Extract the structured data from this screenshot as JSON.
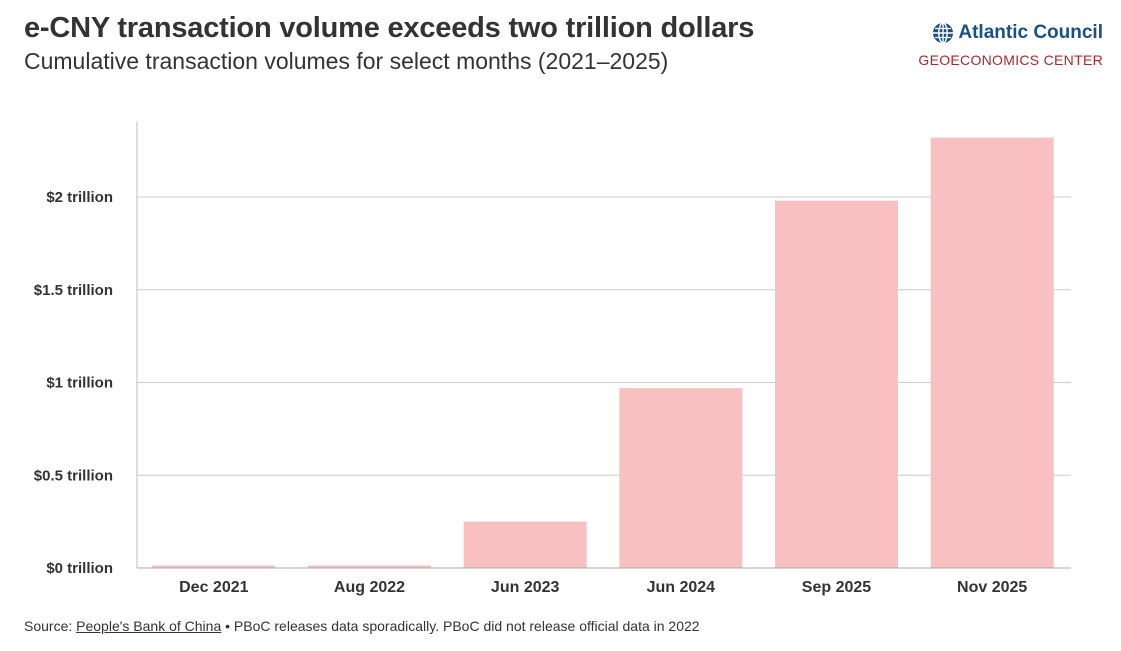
{
  "header": {
    "title": "e-CNY transaction volume exceeds two trillion dollars",
    "subtitle": "Cumulative transaction volumes for select months (2021–2025)"
  },
  "logo": {
    "name": "Atlantic Council",
    "center": "GEOECONOMICS CENTER",
    "icon": "globe-icon",
    "brand_color": "#1b4f8a",
    "center_color": "#b1262e"
  },
  "chart_data": {
    "type": "bar",
    "title": "e-CNY transaction volume exceeds two trillion dollars",
    "subtitle": "Cumulative transaction volumes for select months (2021–2025)",
    "categories": [
      "Dec 2021",
      "Aug 2022",
      "Jun 2023",
      "Jun 2024",
      "Sep 2025",
      "Nov 2025"
    ],
    "values": [
      0.014,
      0.014,
      0.25,
      0.97,
      1.98,
      2.32
    ],
    "y_ticks": [
      0,
      0.5,
      1,
      1.5,
      2
    ],
    "y_tick_labels": [
      "$0 trillion",
      "$0.5 trillion",
      "$1 trillion",
      "$1.5 trillion",
      "$2 trillion"
    ],
    "ylim": [
      0,
      2.4
    ],
    "grid": true,
    "bar_color": "#f8c0c1",
    "xlabel": "",
    "ylabel": ""
  },
  "footer": {
    "source_prefix": "Source: ",
    "source_link": "People's Bank of China",
    "source_note": " • PBoC releases data sporadically. PBoC did not release official data in 2022"
  }
}
